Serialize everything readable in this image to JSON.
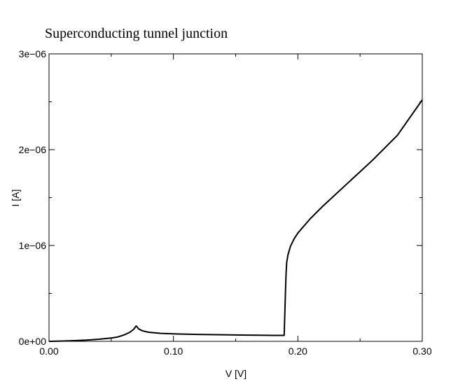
{
  "chart_data": {
    "type": "line",
    "title": "Superconducting tunnel junction",
    "xlabel": "V [V]",
    "ylabel": "I [A]",
    "xlim": [
      0.0,
      0.3
    ],
    "ylim": [
      0.0,
      3e-06
    ],
    "grid": false,
    "legend": "none",
    "x_ticks": [
      {
        "value": 0.0,
        "label": "0.00"
      },
      {
        "value": 0.1,
        "label": "0.10"
      },
      {
        "value": 0.2,
        "label": "0.20"
      },
      {
        "value": 0.3,
        "label": "0.30"
      }
    ],
    "y_ticks": [
      {
        "value": 0.0,
        "label": "0e+00"
      },
      {
        "value": 1e-06,
        "label": "1e−06"
      },
      {
        "value": 2e-06,
        "label": "2e−06"
      },
      {
        "value": 3e-06,
        "label": "3e−06"
      }
    ],
    "x_minor_ticks": [
      0.05,
      0.15,
      0.25
    ],
    "y_minor_ticks": [
      5e-07,
      1.5e-06,
      2.5e-06
    ],
    "series": [
      {
        "color": "#000000",
        "x": [
          0.0,
          0.01,
          0.02,
          0.03,
          0.04,
          0.05,
          0.055,
          0.06,
          0.065,
          0.068,
          0.07,
          0.0705,
          0.072,
          0.075,
          0.08,
          0.09,
          0.1,
          0.12,
          0.14,
          0.16,
          0.18,
          0.189,
          0.19,
          0.1905,
          0.191,
          0.192,
          0.194,
          0.197,
          0.2,
          0.21,
          0.22,
          0.24,
          0.26,
          0.28,
          0.3
        ],
        "y": [
          0.0,
          3e-09,
          7e-09,
          1.3e-08,
          2.2e-08,
          3.5e-08,
          4.5e-08,
          6.5e-08,
          9.5e-08,
          1.25e-07,
          1.6e-07,
          1.55e-07,
          1.3e-07,
          1.1e-07,
          9.5e-08,
          8.3e-08,
          7.8e-08,
          7.2e-08,
          6.8e-08,
          6.5e-08,
          6.2e-08,
          6.2e-08,
          5e-07,
          7e-07,
          8.2e-07,
          9e-07,
          9.9e-07,
          1.07e-06,
          1.13e-06,
          1.28e-06,
          1.41e-06,
          1.65e-06,
          1.89e-06,
          2.15e-06,
          2.52e-06
        ]
      }
    ]
  }
}
